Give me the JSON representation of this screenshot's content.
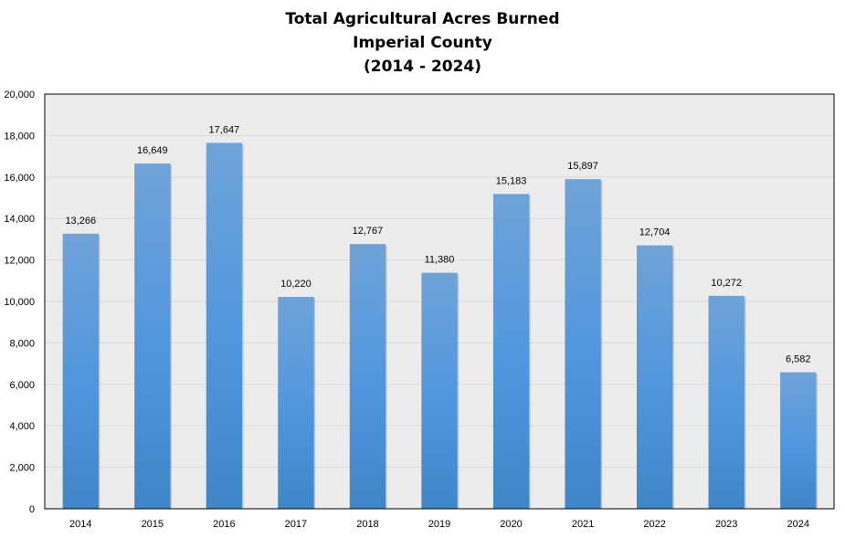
{
  "chart_data": {
    "type": "bar",
    "title": [
      "Total Agricultural Acres Burned",
      "Imperial County",
      "(2014 - 2024)"
    ],
    "categories": [
      "2014",
      "2015",
      "2016",
      "2017",
      "2018",
      "2019",
      "2020",
      "2021",
      "2022",
      "2023",
      "2024"
    ],
    "values": [
      13266,
      16649,
      17647,
      10220,
      12767,
      11380,
      15183,
      15897,
      12704,
      10272,
      6582
    ],
    "value_labels": [
      "13,266",
      "16,649",
      "17,647",
      "10,220",
      "12,767",
      "11,380",
      "15,183",
      "15,897",
      "12,704",
      "10,272",
      "6,582"
    ],
    "yticks": [
      0,
      2000,
      4000,
      6000,
      8000,
      10000,
      12000,
      14000,
      16000,
      18000,
      20000
    ],
    "ytick_labels": [
      "0",
      "2,000",
      "4,000",
      "6,000",
      "8,000",
      "10,000",
      "12,000",
      "14,000",
      "16,000",
      "18,000",
      "20,000"
    ],
    "ylim": [
      0,
      20000
    ],
    "xlabel": "",
    "ylabel": "",
    "grid": true,
    "legend": "none",
    "colors": {
      "bar_top": "#6fa3da",
      "bar_mid": "#4f96dc",
      "bar_bottom": "#3f86c8",
      "plot_background": "#ececec",
      "gridline": "#d9d9d9",
      "plot_border": "#000000"
    }
  }
}
